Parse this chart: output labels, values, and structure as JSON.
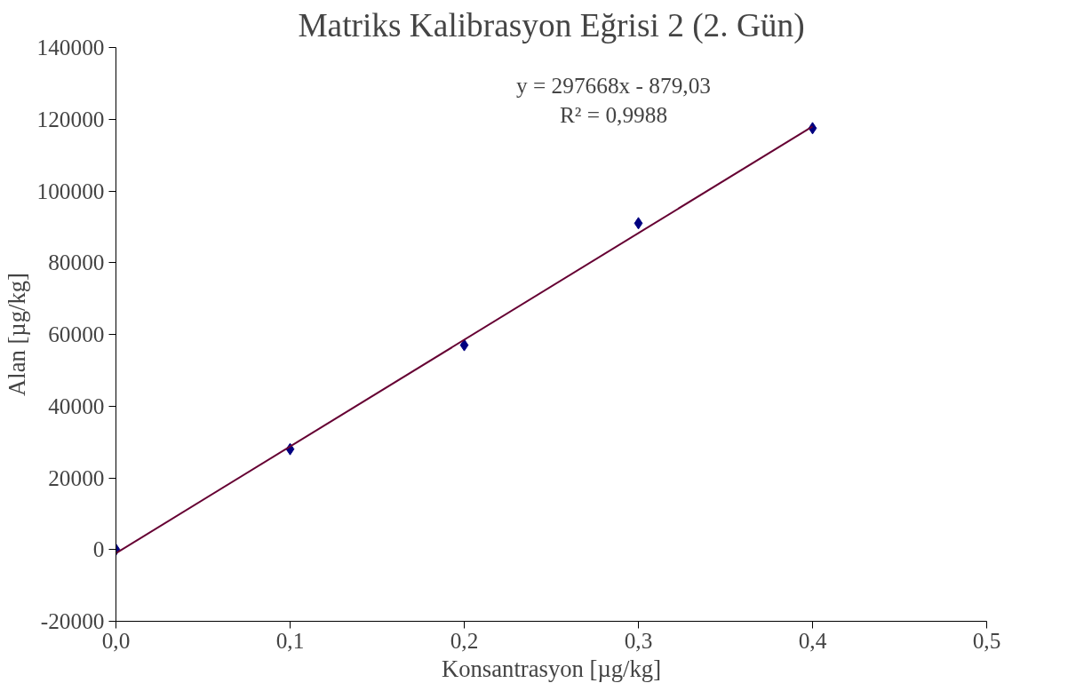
{
  "chart_data": {
    "type": "scatter",
    "title": "Matriks Kalibrasyon Eğrisi 2 (2. Gün)",
    "xlabel": "Konsantrasyon [µg/kg]",
    "ylabel": "Alan [µg/kg]",
    "x": [
      0.0,
      0.1,
      0.2,
      0.3,
      0.4
    ],
    "series": [
      {
        "color": "#000080",
        "marker": "diamond",
        "values": [
          0,
          28000,
          57000,
          91000,
          117500
        ]
      },
      {
        "type": "line",
        "color": "#660033",
        "x": [
          0.0,
          0.4
        ],
        "values": [
          -1000,
          118000
        ]
      }
    ],
    "xlim": [
      0.0,
      0.5
    ],
    "xticks": [
      {
        "value": 0.0,
        "label": "0,0"
      },
      {
        "value": 0.1,
        "label": "0,1"
      },
      {
        "value": 0.2,
        "label": "0,2"
      },
      {
        "value": 0.3,
        "label": "0,3"
      },
      {
        "value": 0.4,
        "label": "0,4"
      },
      {
        "value": 0.5,
        "label": "0,5"
      }
    ],
    "ylim": [
      -20000,
      140000
    ],
    "yticks": [
      -20000,
      0,
      20000,
      40000,
      60000,
      80000,
      100000,
      120000,
      140000
    ],
    "annotations": [
      "y = 297668x - 879,03",
      "R² = 0,9988"
    ]
  }
}
